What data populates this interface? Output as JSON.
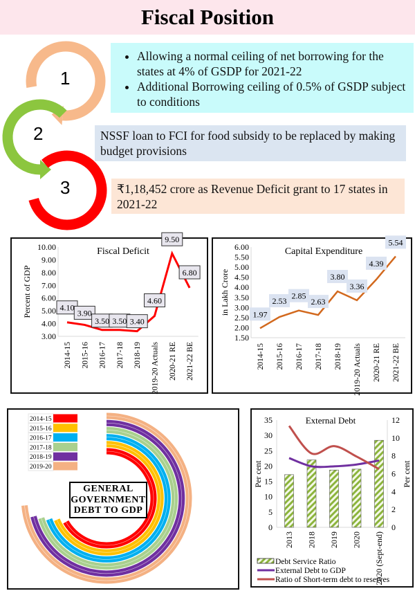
{
  "title": "Fiscal Position",
  "steps": [
    {
      "number": "1",
      "color": "#f7b98b",
      "bullets": [
        "Allowing a normal ceiling of net borrowing for the states at 4% of GSDP for 2021-22",
        "Additional Borrowing ceiling of 0.5% of GSDP subject to conditions"
      ]
    },
    {
      "number": "2",
      "color": "#8cc63f",
      "text": "NSSF loan to FCI for food subsidy to be replaced by making budget provisions"
    },
    {
      "number": "3",
      "color": "#ff0000",
      "text": "₹1,18,452 crore as Revenue Deficit grant  to 17 states in 2021-22"
    }
  ],
  "chart_data": [
    {
      "type": "line",
      "title": "Fiscal Deficit",
      "ylabel": "Percent of GDP",
      "xlabel": "",
      "categories": [
        "2014-15",
        "2015-16",
        "2016-17",
        "2017-18",
        "2018-19",
        "2019-20 Actuals",
        "2020-21 RE",
        "2021-22 BE"
      ],
      "values": [
        4.1,
        3.9,
        3.5,
        3.5,
        3.4,
        4.6,
        9.5,
        6.8
      ],
      "data_labels": [
        "4.10",
        "3.90",
        "3.50",
        "3.50",
        "3.40",
        "4.60",
        "9.50",
        "6.80"
      ],
      "ylim": [
        3,
        10
      ],
      "yticks": [
        "3.00",
        "4.00",
        "5.00",
        "6.00",
        "7.00",
        "8.00",
        "9.00",
        "10.00"
      ],
      "color": "#ff0000",
      "grid": false
    },
    {
      "type": "line",
      "title": "Capital Expenditure",
      "ylabel": "in Lakh Crore",
      "xlabel": "",
      "categories": [
        "2014-15",
        "2015-16",
        "2016-17",
        "2017-18",
        "2018-19",
        "2019-20 Actuals",
        "2020-21 RE",
        "2021-22 BE"
      ],
      "values": [
        1.97,
        2.53,
        2.85,
        2.63,
        3.8,
        3.36,
        4.39,
        5.54
      ],
      "data_labels": [
        "1.97",
        "2.53",
        "2.85",
        "2.63",
        "3.80",
        "3.36",
        "4.39",
        "5.54"
      ],
      "ylim": [
        1.5,
        6
      ],
      "yticks": [
        "1.50",
        "2.00",
        "2.50",
        "3.00",
        "3.50",
        "4.00",
        "4.50",
        "5.00",
        "5.50",
        "6.00"
      ],
      "color": "#d2691e",
      "grid": false
    },
    {
      "type": "radial-bar",
      "title": "GENERAL GOVERNMENT DEBT TO GDP",
      "categories": [
        "2014-15",
        "2015-16",
        "2016-17",
        "2017-18",
        "2018-19",
        "2019-20"
      ],
      "values": [
        66.6,
        68.5,
        69.4,
        70.3,
        71.1,
        73.6
      ],
      "max": 100,
      "colors": [
        "#ff0000",
        "#ffc000",
        "#00b0f0",
        "#a9d08e",
        "#7030a0",
        "#f4b183"
      ]
    },
    {
      "type": "bar+line",
      "title": "External Debt",
      "ylabel": "Per cent",
      "y2label": "Per cent",
      "categories": [
        "2013",
        "2018",
        "2019",
        "2020",
        "2020 (Sept-end)"
      ],
      "ylim": [
        0,
        35
      ],
      "yticks": [
        "0",
        "5",
        "10",
        "15",
        "20",
        "25",
        "30",
        "35"
      ],
      "y2lim": [
        0,
        12
      ],
      "y2ticks": [
        "0",
        "2",
        "4",
        "6",
        "8",
        "10",
        "12"
      ],
      "series": [
        {
          "name": "Debt Service Ratio",
          "type": "bar",
          "values": [
            17.2,
            22.0,
            18.7,
            19.0,
            28.4
          ],
          "color": "#8cb43c"
        },
        {
          "name": "External Debt to GDP",
          "type": "line",
          "values": [
            22.6,
            19.9,
            19.9,
            20.5,
            21.8
          ],
          "color": "#7030a0"
        },
        {
          "name": "Ratio of Short-term debt to reserves",
          "type": "line",
          "values": [
            33.1,
            24.1,
            26.5,
            23.1,
            19.0
          ],
          "color": "#c0504d"
        }
      ],
      "legend": "bottom"
    }
  ]
}
